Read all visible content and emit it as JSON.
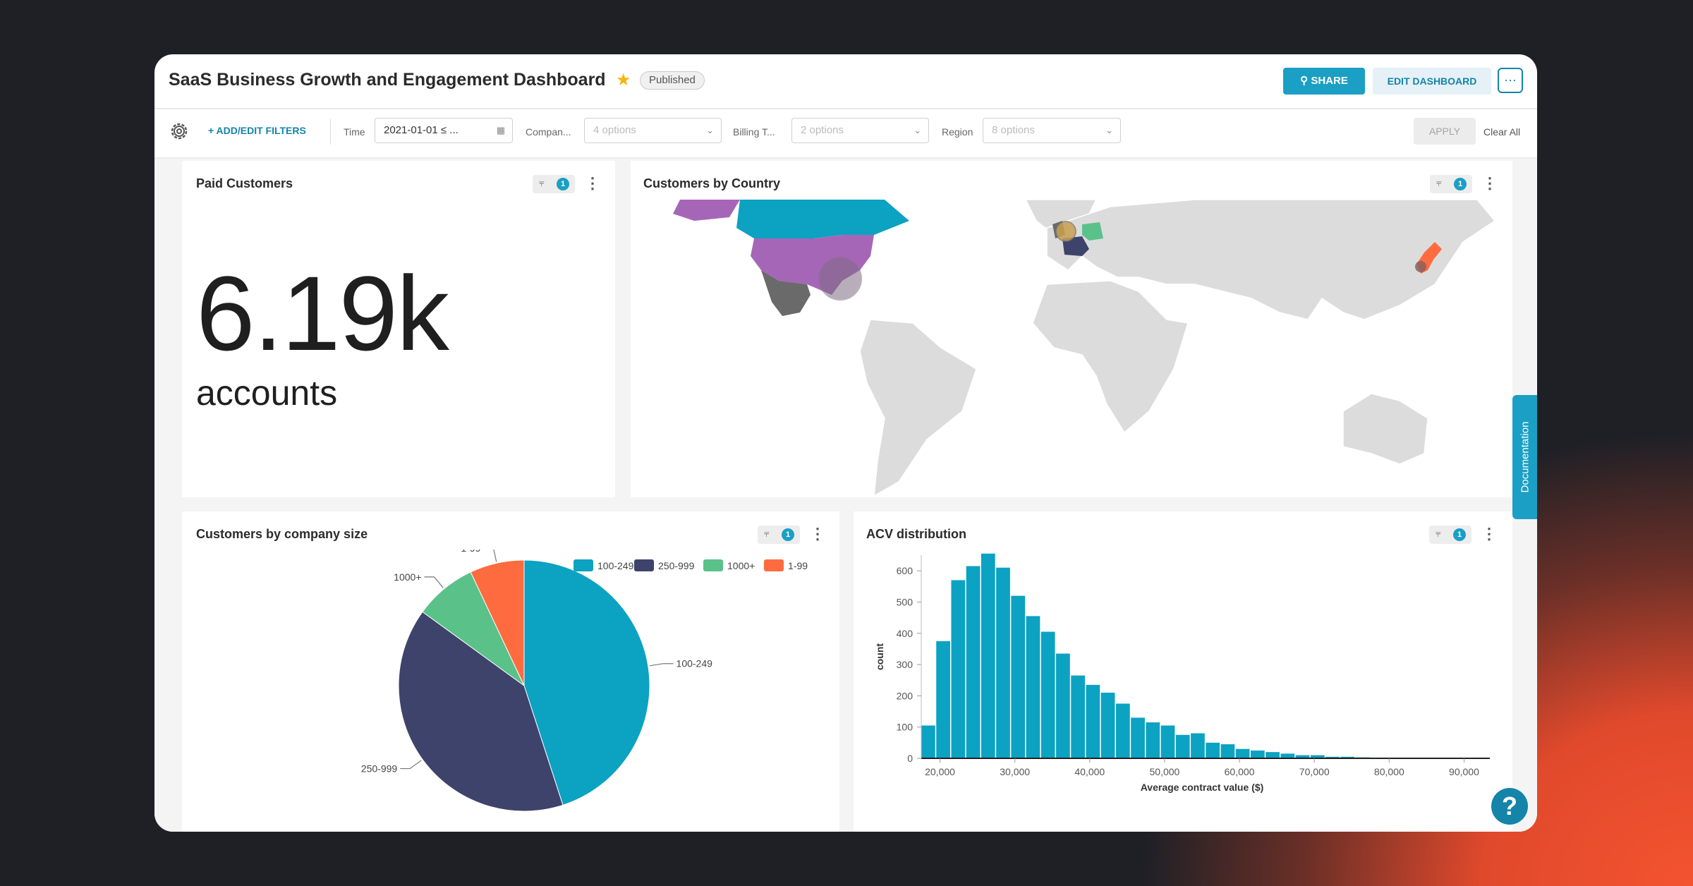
{
  "header": {
    "title": "SaaS Business Growth and Engagement Dashboard",
    "badge": "Published",
    "share_label": "SHARE",
    "edit_label": "EDIT DASHBOARD",
    "more_label": "···"
  },
  "filters": {
    "add_label": "+ ADD/EDIT FILTERS",
    "time_label": "Time",
    "time_value": "2021-01-01 ≤ ...",
    "company_label": "Compan...",
    "company_placeholder": "4 options",
    "billing_label": "Billing T...",
    "billing_placeholder": "2 options",
    "region_label": "Region",
    "region_placeholder": "8 options",
    "apply_label": "APPLY",
    "clear_label": "Clear All"
  },
  "cards": {
    "paid": {
      "title": "Paid Customers",
      "value": "6.19k",
      "unit": "accounts",
      "filter_count": "1"
    },
    "country": {
      "title": "Customers by Country",
      "filter_count": "1"
    },
    "size": {
      "title": "Customers by company size",
      "filter_count": "1"
    },
    "acv": {
      "title": "ACV distribution",
      "filter_count": "1"
    }
  },
  "documentation_label": "Documentation",
  "help_label": "?",
  "colors": {
    "teal": "#0ca2c2",
    "navy": "#3d436b",
    "green": "#5ac189",
    "orange": "#fe6b3f",
    "accent": "#1b9fc4"
  },
  "chart_data": [
    {
      "type": "pie",
      "title": "Customers by company size",
      "legend": [
        "100-249",
        "250-999",
        "1000+",
        "1-99"
      ],
      "legend_position": "top-right",
      "slices": [
        {
          "label": "100-249",
          "value": 45
        },
        {
          "label": "250-999",
          "value": 40
        },
        {
          "label": "1000+",
          "value": 8
        },
        {
          "label": "1-99",
          "value": 7
        }
      ]
    },
    {
      "type": "bar",
      "title": "ACV distribution",
      "xlabel": "Average contract value ($)",
      "ylabel": "count",
      "xlim": [
        17500,
        92500
      ],
      "ylim": [
        0,
        650
      ],
      "x_ticks": [
        "20,000",
        "30,000",
        "40,000",
        "50,000",
        "60,000",
        "70,000",
        "80,000",
        "90,000"
      ],
      "y_ticks": [
        "0",
        "100",
        "200",
        "300",
        "400",
        "500",
        "600"
      ],
      "bin_width": 2000,
      "bin_start": 17500,
      "values": [
        105,
        375,
        570,
        615,
        655,
        610,
        520,
        455,
        405,
        335,
        265,
        235,
        210,
        175,
        130,
        115,
        105,
        75,
        80,
        50,
        45,
        30,
        25,
        20,
        15,
        10,
        10,
        5,
        5,
        3,
        2,
        1,
        1,
        1,
        1,
        1,
        1
      ]
    }
  ]
}
